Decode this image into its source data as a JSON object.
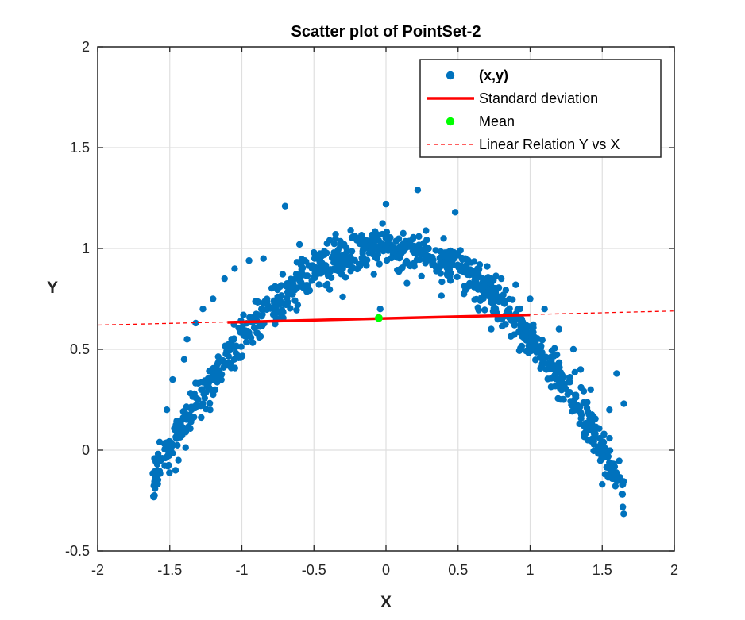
{
  "chart_data": {
    "type": "scatter",
    "title": "Scatter plot of PointSet-2",
    "xlabel": "X",
    "ylabel": "Y",
    "xlim": [
      -2,
      2
    ],
    "ylim": [
      -0.5,
      2
    ],
    "xticks": [
      -2,
      -1.5,
      -1,
      -0.5,
      0,
      0.5,
      1,
      1.5,
      2
    ],
    "yticks": [
      -0.5,
      0,
      0.5,
      1,
      1.5,
      2
    ],
    "xtick_labels": [
      "-2",
      "-1.5",
      "-1",
      "-0.5",
      "0",
      "0.5",
      "1",
      "1.5",
      "2"
    ],
    "ytick_labels": [
      "-0.5",
      "0",
      "0.5",
      "1",
      "1.5",
      "2"
    ],
    "grid": true,
    "legend_position": "top-right",
    "legend": [
      {
        "label": "(x,y)",
        "kind": "marker",
        "color": "#0072BD"
      },
      {
        "label": "Standard deviation",
        "kind": "line",
        "color": "#FF0000"
      },
      {
        "label": "Mean",
        "kind": "marker",
        "color": "#00FF00"
      },
      {
        "label": "Linear Relation Y vs X",
        "kind": "dashed",
        "color": "#FF0000"
      }
    ],
    "scatter": {
      "color": "#0072BD",
      "n_points": 1000,
      "x_range": [
        -1.62,
        1.65
      ],
      "pattern": "y ≈ 1 - 0.44·x², arch from about (-1.55, 0.05) up to (0, 1.0) and down to (1.55, 0.05)",
      "points": [
        [
          -1.57,
          0.04
        ],
        [
          -1.52,
          0.2
        ],
        [
          -1.48,
          0.35
        ],
        [
          -1.46,
          -0.1
        ],
        [
          -1.44,
          -0.05
        ],
        [
          -1.4,
          0.45
        ],
        [
          -1.38,
          0.55
        ],
        [
          -1.32,
          0.63
        ],
        [
          -1.27,
          0.7
        ],
        [
          -1.22,
          0.2
        ],
        [
          -1.2,
          0.75
        ],
        [
          -1.12,
          0.85
        ],
        [
          -1.05,
          0.9
        ],
        [
          -0.95,
          0.94
        ],
        [
          -0.85,
          0.95
        ],
        [
          -0.7,
          1.21
        ],
        [
          -0.6,
          1.02
        ],
        [
          -0.5,
          0.98
        ],
        [
          -0.35,
          1.05
        ],
        [
          -0.3,
          0.76
        ],
        [
          -0.2,
          1.05
        ],
        [
          -0.1,
          1.0
        ],
        [
          -0.04,
          0.7
        ],
        [
          0.0,
          1.22
        ],
        [
          0.1,
          1.0
        ],
        [
          0.22,
          1.29
        ],
        [
          0.3,
          0.96
        ],
        [
          0.4,
          1.05
        ],
        [
          0.48,
          1.18
        ],
        [
          0.55,
          0.95
        ],
        [
          0.65,
          0.92
        ],
        [
          0.73,
          0.6
        ],
        [
          0.8,
          0.85
        ],
        [
          0.9,
          0.82
        ],
        [
          1.0,
          0.75
        ],
        [
          1.1,
          0.7
        ],
        [
          1.2,
          0.6
        ],
        [
          1.3,
          0.5
        ],
        [
          1.35,
          0.4
        ],
        [
          1.42,
          0.3
        ],
        [
          1.45,
          0.1
        ],
        [
          1.5,
          -0.17
        ],
        [
          1.52,
          -0.12
        ],
        [
          1.55,
          0.2
        ],
        [
          1.6,
          0.38
        ],
        [
          1.65,
          0.23
        ]
      ]
    },
    "mean": {
      "x": -0.05,
      "y": 0.655,
      "color": "#00FF00"
    },
    "std_line": {
      "x": [
        -1.1,
        1.0
      ],
      "y": [
        0.634,
        0.671
      ],
      "color": "#FF0000"
    },
    "regression_line": {
      "x": [
        -2,
        2
      ],
      "y": [
        0.62,
        0.69
      ],
      "color": "#FF0000"
    }
  }
}
